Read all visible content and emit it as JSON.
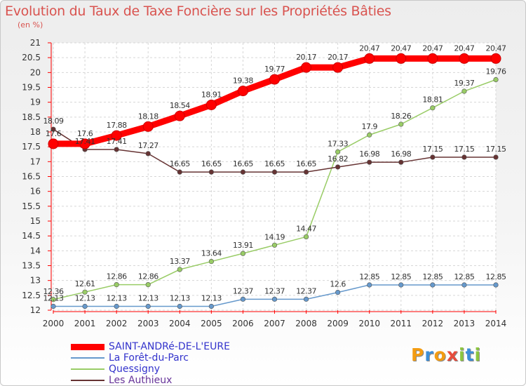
{
  "header": {
    "title": "Evolution du Taux de Taxe Foncière sur les Propriétés Bâties",
    "unit": "(en %)"
  },
  "chart_data": {
    "type": "line",
    "title": "Evolution du Taux de Taxe Foncière sur les Propriétés Bâties",
    "ylabel": "(en %)",
    "xlabel": "",
    "x": [
      2000,
      2001,
      2002,
      2003,
      2004,
      2005,
      2006,
      2007,
      2008,
      2009,
      2010,
      2011,
      2012,
      2013,
      2014
    ],
    "ylim": [
      12,
      21
    ],
    "yticks": [
      12,
      12.5,
      13,
      13.5,
      14,
      14.5,
      15,
      15.5,
      16,
      16.5,
      17,
      17.5,
      18,
      18.5,
      19,
      19.5,
      20,
      20.5,
      21
    ],
    "grid": true,
    "legend_position": "bottom-left",
    "series": [
      {
        "name": "SAINT-ANDRé-DE-L'EURE",
        "color": "#ff0000",
        "values": [
          17.6,
          17.6,
          17.88,
          18.18,
          18.54,
          18.91,
          19.38,
          19.77,
          20.17,
          20.17,
          20.47,
          20.47,
          20.47,
          20.47,
          20.47
        ]
      },
      {
        "name": "La Forêt-du-Parc",
        "color": "#6699cc",
        "values": [
          12.13,
          12.13,
          12.13,
          12.13,
          12.13,
          12.13,
          12.37,
          12.37,
          12.37,
          12.6,
          12.85,
          12.85,
          12.85,
          12.85,
          12.85
        ]
      },
      {
        "name": "Quessigny",
        "color": "#99cc66",
        "values": [
          12.36,
          12.61,
          12.86,
          12.86,
          13.37,
          13.64,
          13.91,
          14.19,
          14.47,
          17.33,
          17.9,
          18.26,
          18.81,
          19.37,
          19.76
        ]
      },
      {
        "name": "Les Authieux",
        "color": "#663333",
        "values": [
          18.09,
          17.41,
          17.41,
          17.27,
          16.65,
          16.65,
          16.65,
          16.65,
          16.65,
          16.82,
          16.98,
          16.98,
          17.15,
          17.15,
          17.15
        ]
      }
    ]
  },
  "legend": {
    "items": [
      {
        "label": "SAINT-ANDRé-DE-L'EURE",
        "color": "#ff0000"
      },
      {
        "label": "La Forêt-du-Parc",
        "color": "#6699cc"
      },
      {
        "label": "Quessigny",
        "color": "#99cc66"
      },
      {
        "label": "Les Authieux",
        "color": "#663333"
      }
    ]
  },
  "logo": {
    "text": "Proxiti",
    "letters": [
      {
        "ch": "P",
        "color": "#f39c12"
      },
      {
        "ch": "r",
        "color": "#3b8ed8"
      },
      {
        "ch": "o",
        "color": "#f39c12"
      },
      {
        "ch": "x",
        "color": "#e74c3c"
      },
      {
        "ch": "i",
        "color": "#8cc63f"
      },
      {
        "ch": "t",
        "color": "#3b8ed8"
      },
      {
        "ch": "i",
        "color": "#8cc63f"
      }
    ]
  }
}
